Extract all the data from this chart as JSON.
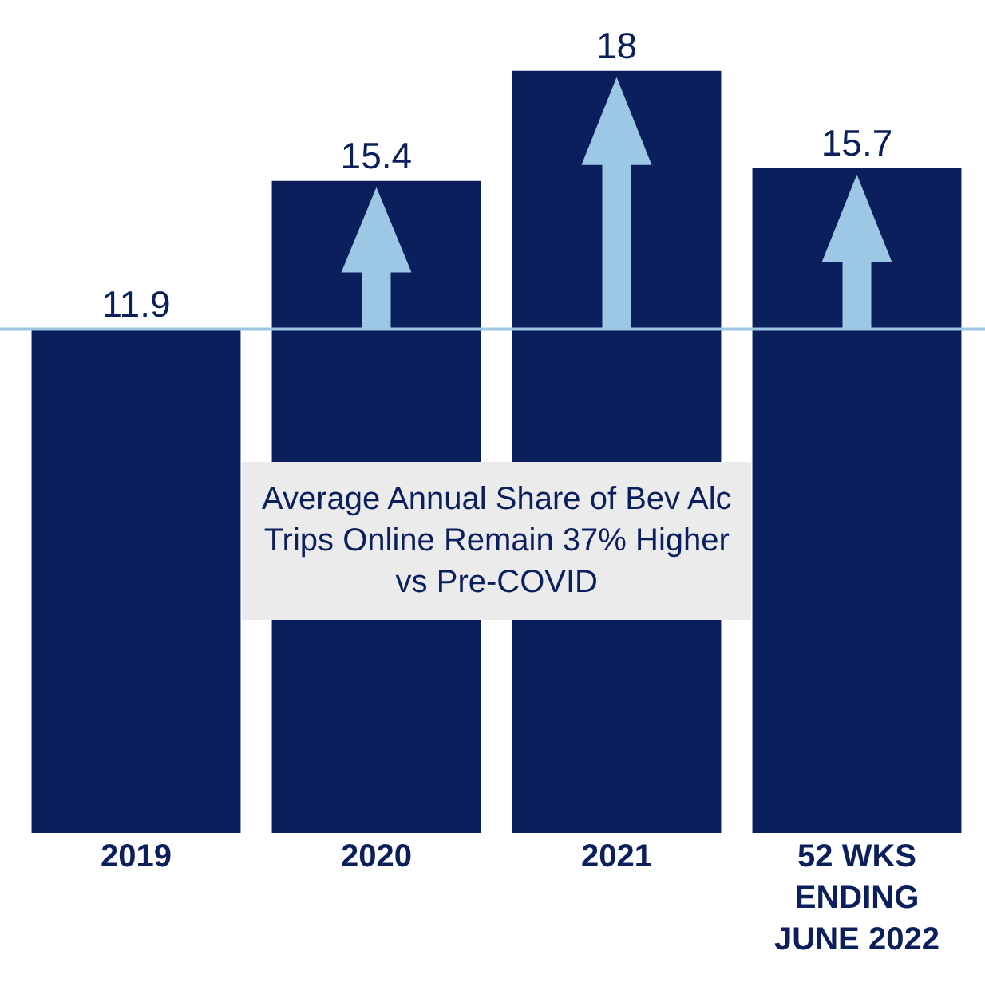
{
  "chart_data": {
    "type": "bar",
    "categories": [
      "2019",
      "2020",
      "2021",
      "52 WKS ENDING JUNE 2022"
    ],
    "values": [
      11.9,
      15.4,
      18,
      15.7
    ],
    "color": "#0b1f5c",
    "data_labels": true,
    "tick_labels": "x",
    "ref_lines": [
      {
        "axis": "y",
        "value": 11.9,
        "color": "#9cc8e6"
      }
    ],
    "annotations": [
      "Average Annual Share of Bev Alc Trips Online Remain 37% Higher vs Pre-COVID"
    ]
  }
}
